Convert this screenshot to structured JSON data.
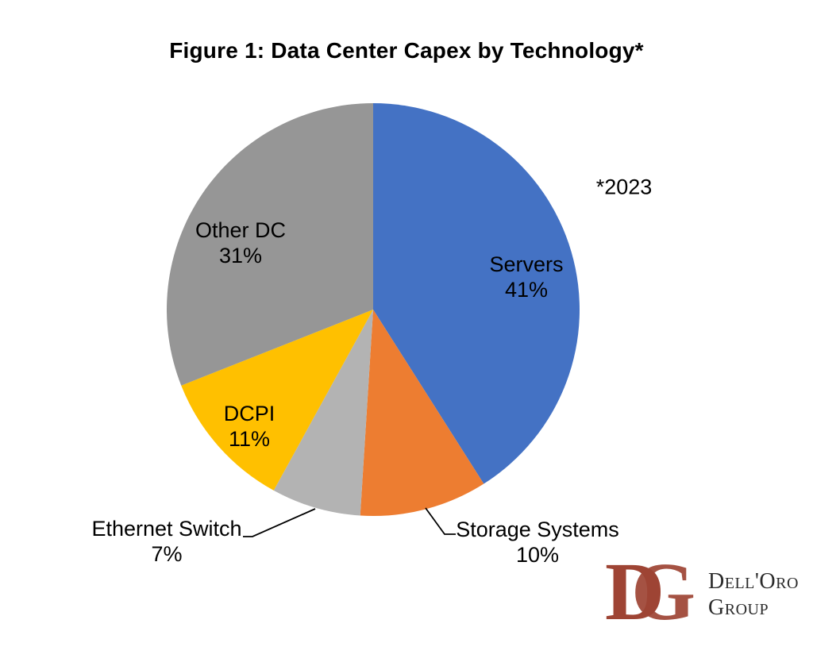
{
  "page": {
    "background": "#FFFFFF"
  },
  "chart_data": {
    "type": "pie",
    "title": "Figure 1: Data Center Capex by Technology*",
    "annotation": "*2023",
    "unit": "%",
    "start_angle_deg": 0,
    "direction": "clockwise",
    "legend": "none",
    "slices": [
      {
        "label": "Servers",
        "value": 41,
        "pct_label": "41%",
        "color": "#4472C4",
        "label_placement": "inside"
      },
      {
        "label": "Storage Systems",
        "value": 10,
        "pct_label": "10%",
        "color": "#ED7D31",
        "label_placement": "outside"
      },
      {
        "label": "Ethernet Switch",
        "value": 7,
        "pct_label": "7%",
        "color": "#B3B3B3",
        "label_placement": "outside"
      },
      {
        "label": "DCPI",
        "value": 11,
        "pct_label": "11%",
        "color": "#FFC000",
        "label_placement": "inside"
      },
      {
        "label": "Other DC",
        "value": 31,
        "pct_label": "31%",
        "color": "#969696",
        "label_placement": "inside"
      }
    ]
  },
  "logo": {
    "monogram_d": "D",
    "monogram_g": "G",
    "name_line1": "Dell'Oro",
    "name_line2": "Group",
    "monogram_color": "#9E4434",
    "text_color": "#2B2B2B"
  }
}
